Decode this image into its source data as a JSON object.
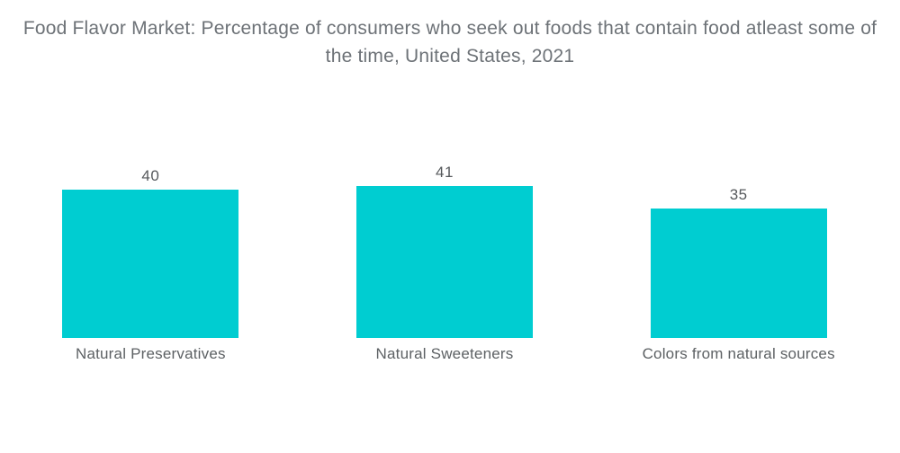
{
  "title": {
    "text": "Food Flavor Market: Percentage of consumers who seek out foods that contain food atleast some of the time, United States, 2021"
  },
  "chart_data": {
    "type": "bar",
    "title": "Food Flavor Market: Percentage of consumers who seek out foods that contain food atleast some of the time, United States, 2021",
    "categories": [
      "Natural Preservatives",
      "Natural Sweeteners",
      "Colors from natural sources"
    ],
    "values": [
      40,
      41,
      35
    ],
    "value_labels": [
      "40",
      "41",
      "35"
    ],
    "xlabel": "",
    "ylabel": "",
    "ylim": [
      0,
      41
    ],
    "grid": false,
    "legend_position": "none",
    "bar_color": "#00CDD1"
  },
  "colors": {
    "background": "#ffffff",
    "bar": "#00CDD1",
    "title_text": "#6d7277",
    "value_text": "#56595c",
    "category_text": "#5d6164"
  }
}
